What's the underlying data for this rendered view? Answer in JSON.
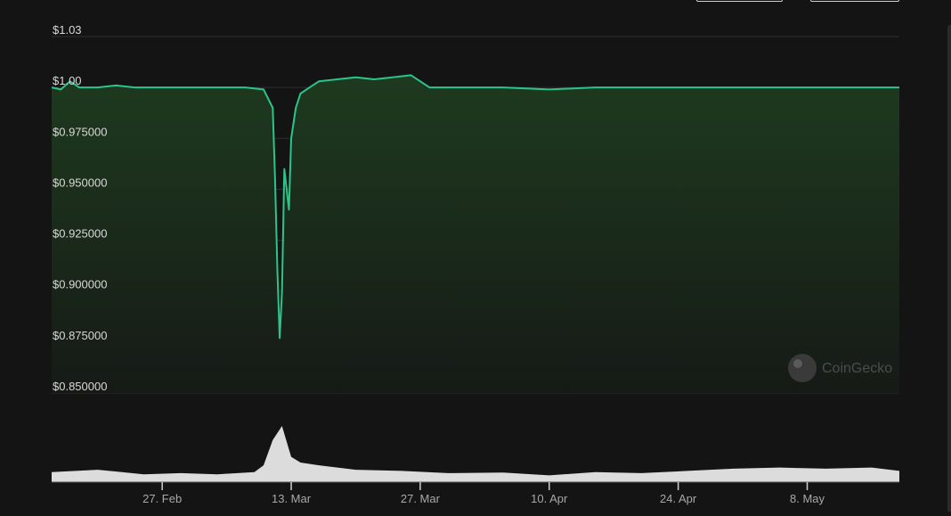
{
  "brand": {
    "watermark": "CoinGecko",
    "logo_icon": "gecko-logo-icon"
  },
  "toolbar": {
    "buttons": [
      "",
      ""
    ]
  },
  "colors": {
    "background": "#141414",
    "line": "#2bc48a",
    "area_top": "#1e3a1f",
    "area_bottom": "#161a16",
    "grid": "#2e2e2e",
    "volume": "#ffffff",
    "tick_text": "#a8a8a8"
  },
  "chart_data": {
    "type": "area",
    "y_tick_labels": [
      "$1.03",
      "$1.00",
      "$0.975000",
      "$0.950000",
      "$0.925000",
      "$0.900000",
      "$0.875000",
      "$0.850000"
    ],
    "y_ticks": [
      1.025,
      1.0,
      0.975,
      0.95,
      0.925,
      0.9,
      0.875,
      0.85
    ],
    "ylim": [
      0.85,
      1.025
    ],
    "x_tick_labels": [
      "27. Feb",
      "13. Mar",
      "27. Mar",
      "10. Apr",
      "24. Apr",
      "8. May"
    ],
    "x_ticks": [
      "2023-02-27",
      "2023-03-13",
      "2023-03-27",
      "2023-04-10",
      "2023-04-24",
      "2023-05-08"
    ],
    "x_range": [
      "2023-02-15",
      "2023-05-18"
    ],
    "grid": true,
    "series": [
      {
        "x": [
          "2023-02-15",
          "2023-02-16",
          "2023-02-17",
          "2023-02-18",
          "2023-02-20",
          "2023-02-22",
          "2023-02-24",
          "2023-02-26",
          "2023-02-28",
          "2023-03-02",
          "2023-03-04",
          "2023-03-06",
          "2023-03-08",
          "2023-03-10",
          "2023-03-11",
          "2023-03-11 06:00",
          "2023-03-11 12:00",
          "2023-03-11 18:00",
          "2023-03-12",
          "2023-03-12 06:00",
          "2023-03-12 12:00",
          "2023-03-12 18:00",
          "2023-03-13",
          "2023-03-13 12:00",
          "2023-03-14",
          "2023-03-15",
          "2023-03-16",
          "2023-03-18",
          "2023-03-20",
          "2023-03-22",
          "2023-03-24",
          "2023-03-26",
          "2023-03-28",
          "2023-03-29",
          "2023-04-01",
          "2023-04-05",
          "2023-04-10",
          "2023-04-15",
          "2023-04-20",
          "2023-04-25",
          "2023-04-30",
          "2023-05-05",
          "2023-05-10",
          "2023-05-15",
          "2023-05-18"
        ],
        "values": [
          1.0,
          0.999,
          1.003,
          1.0,
          1.0,
          1.001,
          1.0,
          1.0,
          1.0,
          1.0,
          1.0,
          1.0,
          1.0,
          0.999,
          0.99,
          0.955,
          0.91,
          0.877,
          0.9,
          0.96,
          0.95,
          0.94,
          0.975,
          0.99,
          0.997,
          1.0,
          1.003,
          1.004,
          1.005,
          1.004,
          1.005,
          1.006,
          1.0,
          1.0,
          1.0,
          1.0,
          0.999,
          1.0,
          1.0,
          1.0,
          1.0,
          1.0,
          1.0,
          1.0,
          1.0
        ]
      }
    ],
    "volume": {
      "x": [
        "2023-02-15",
        "2023-02-20",
        "2023-02-25",
        "2023-03-01",
        "2023-03-05",
        "2023-03-09",
        "2023-03-10",
        "2023-03-11",
        "2023-03-12",
        "2023-03-13",
        "2023-03-14",
        "2023-03-16",
        "2023-03-20",
        "2023-03-25",
        "2023-03-30",
        "2023-04-05",
        "2023-04-10",
        "2023-04-15",
        "2023-04-20",
        "2023-04-25",
        "2023-04-30",
        "2023-05-05",
        "2023-05-10",
        "2023-05-15",
        "2023-05-18"
      ],
      "values": [
        0.18,
        0.22,
        0.14,
        0.16,
        0.14,
        0.18,
        0.3,
        0.75,
        1.0,
        0.45,
        0.35,
        0.3,
        0.22,
        0.2,
        0.16,
        0.17,
        0.12,
        0.18,
        0.16,
        0.2,
        0.24,
        0.26,
        0.24,
        0.26,
        0.2
      ]
    }
  }
}
